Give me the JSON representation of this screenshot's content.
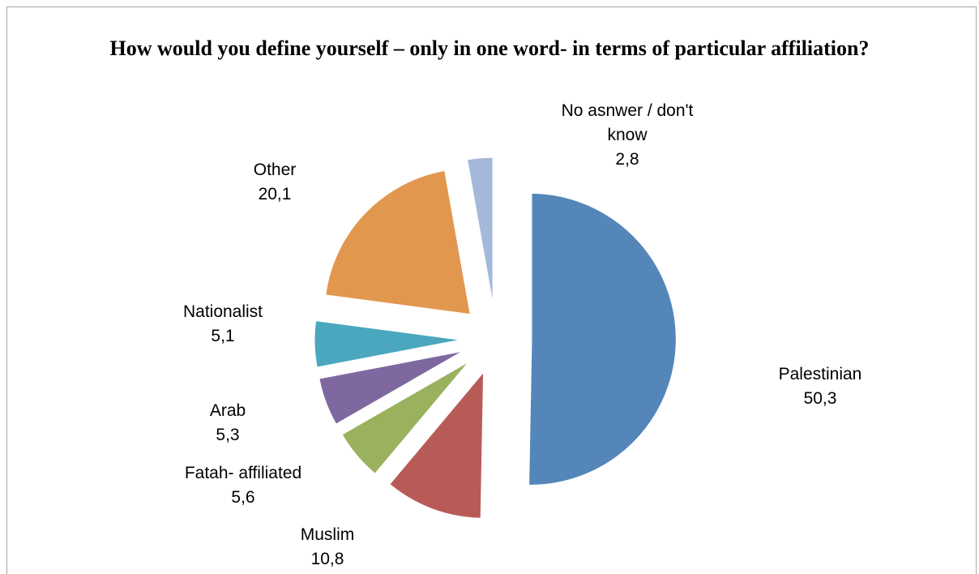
{
  "chart_data": {
    "type": "pie",
    "title": "How would you define yourself – only in one word- in terms of particular affiliation?",
    "exploded": true,
    "slices": [
      {
        "label": "Palestinian",
        "value": 50.3,
        "display": "50,3",
        "color": "#5586b9"
      },
      {
        "label": "Muslim",
        "value": 10.8,
        "display": "10,8",
        "color": "#b85b57"
      },
      {
        "label": "Fatah- affiliated",
        "value": 5.6,
        "display": "5,6",
        "color": "#9ab15e"
      },
      {
        "label": "Arab",
        "value": 5.3,
        "display": "5,3",
        "color": "#7f68a0"
      },
      {
        "label": "Nationalist",
        "value": 5.1,
        "display": "5,1",
        "color": "#4aa7be"
      },
      {
        "label": "Other",
        "value": 20.1,
        "display": "20,1",
        "color": "#e2974f"
      },
      {
        "label": "No asnwer / don't know",
        "value": 2.8,
        "display": "2,8",
        "color": "#a4b8d9"
      }
    ]
  }
}
